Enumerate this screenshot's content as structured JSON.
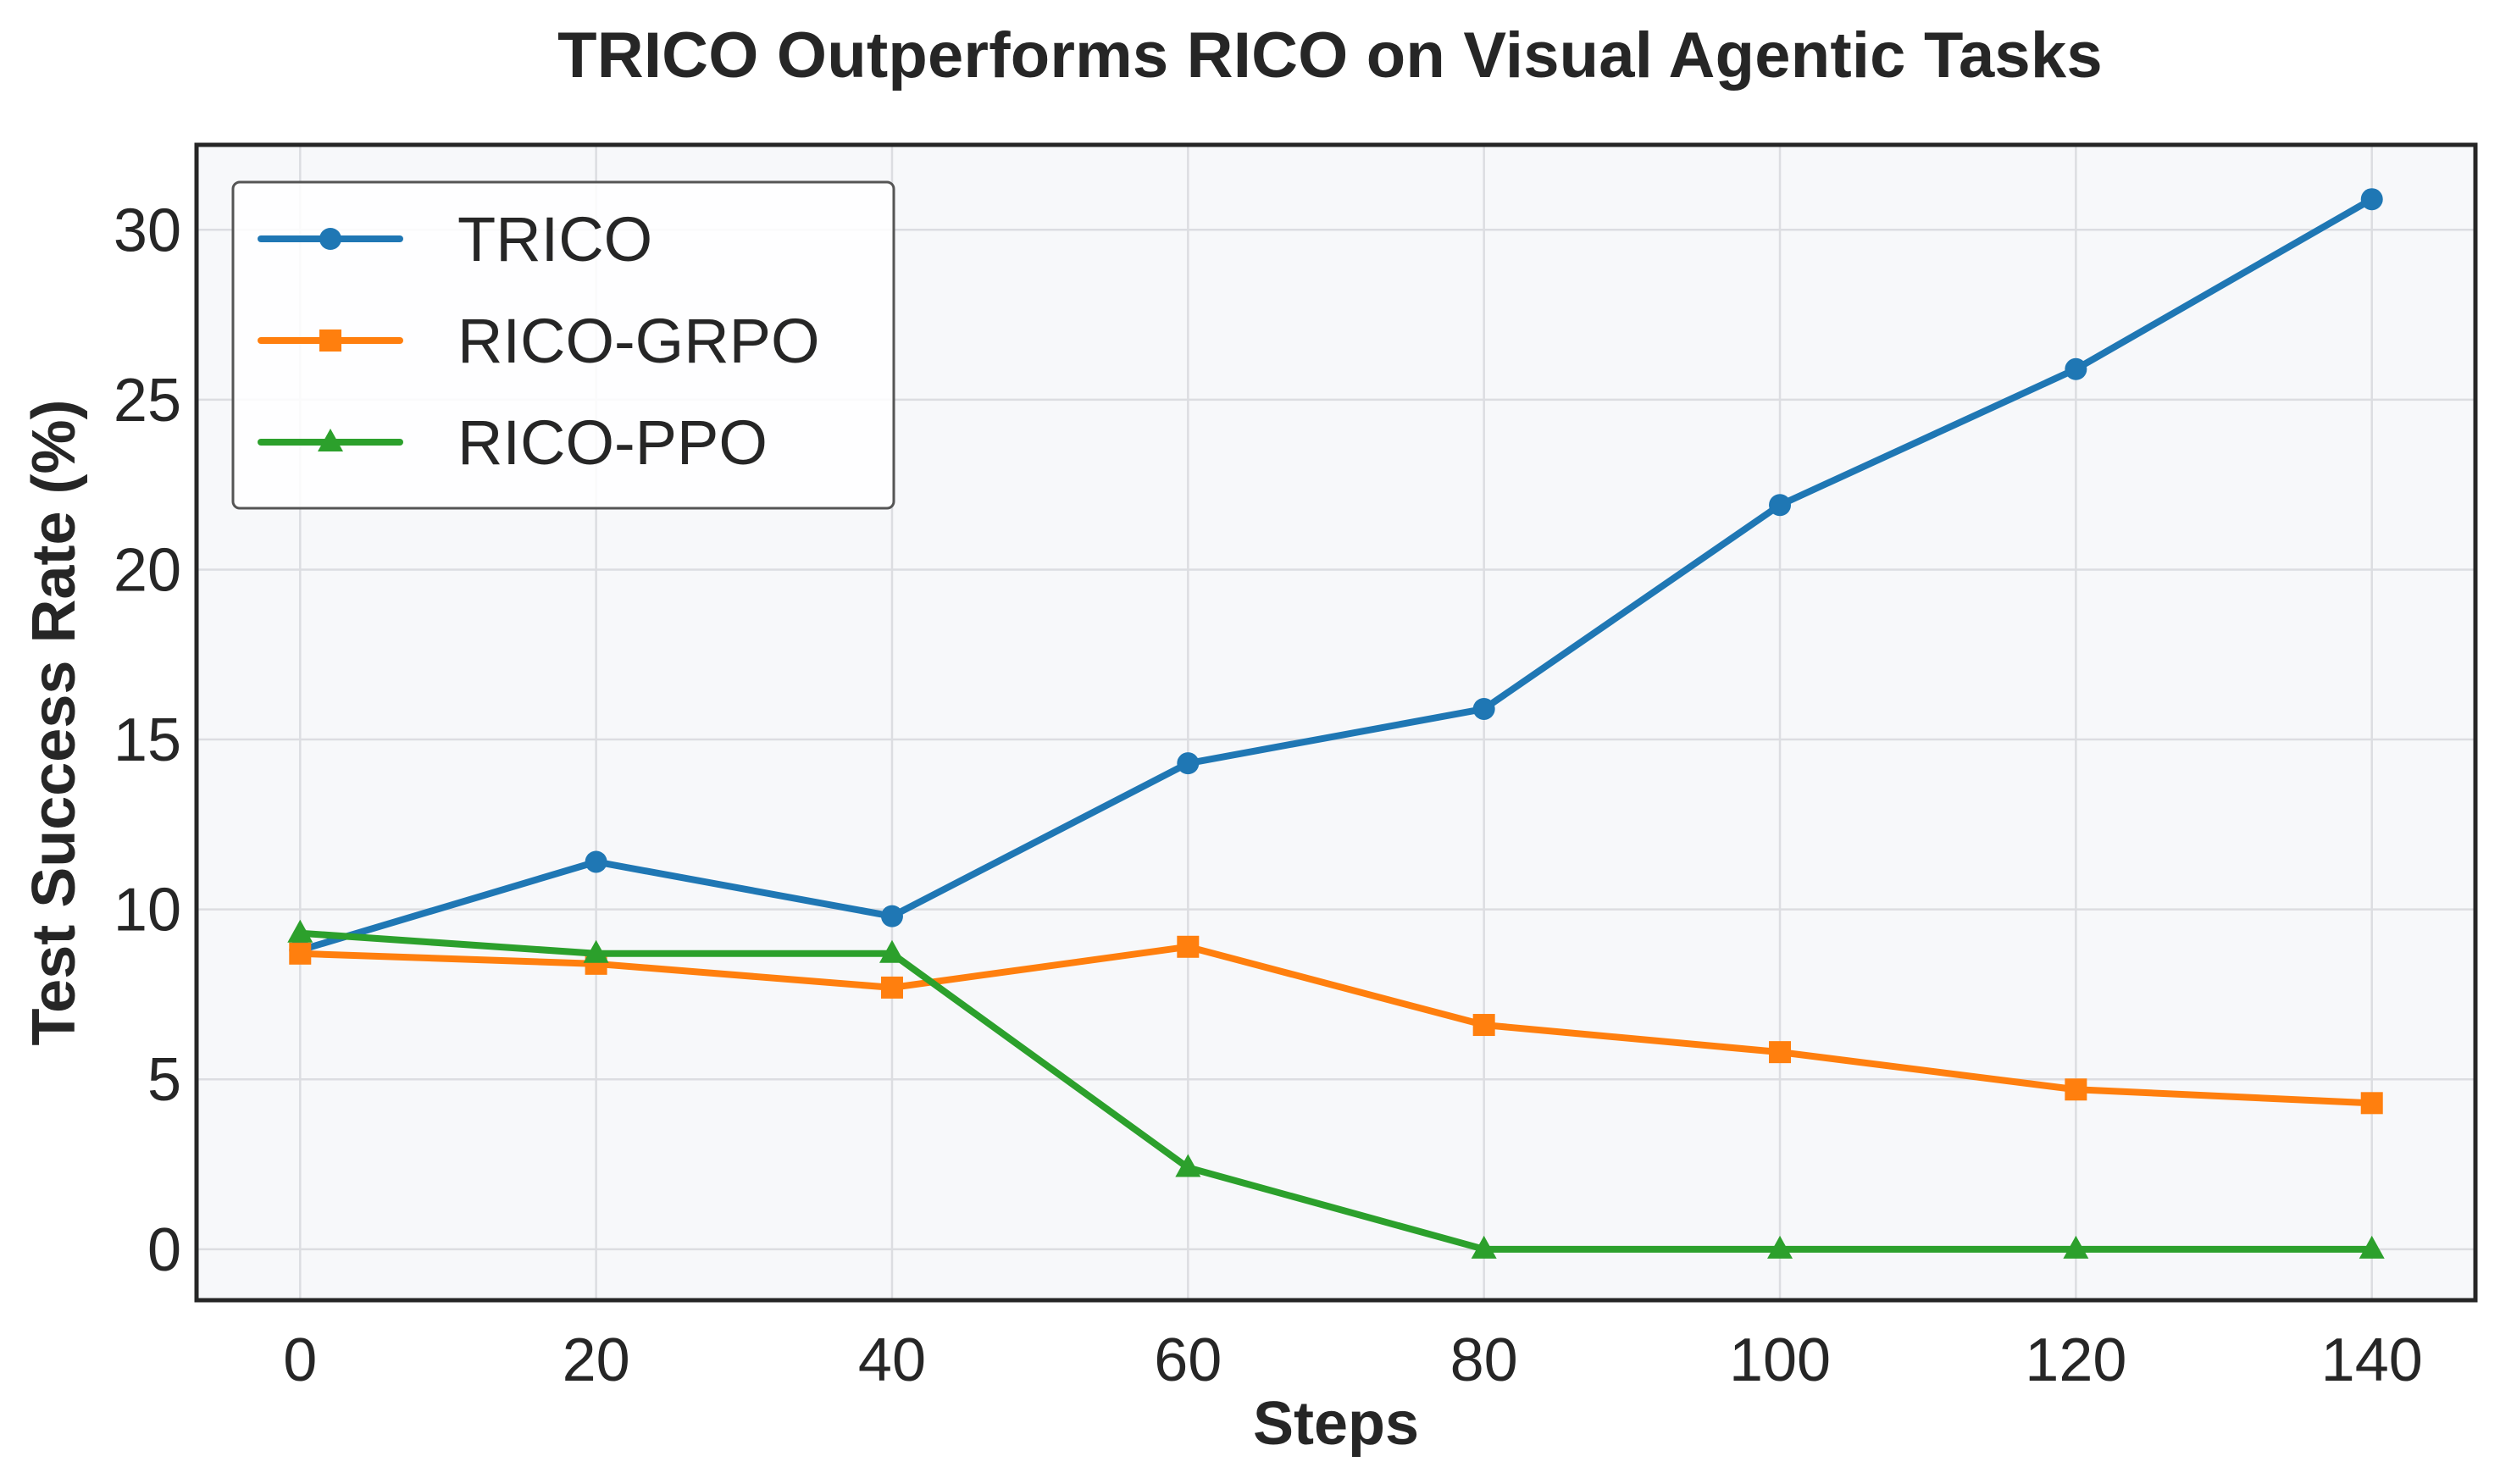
{
  "chart_data": {
    "type": "line",
    "title": "TRICO Outperforms RICO on Visual Agentic Tasks",
    "xlabel": "Steps",
    "ylabel": "Test Success Rate (%)",
    "x": [
      0,
      20,
      40,
      60,
      80,
      100,
      120,
      140
    ],
    "xlim": [
      -7,
      147
    ],
    "ylim": [
      -1.5,
      32.5
    ],
    "xticks": [
      0,
      20,
      40,
      60,
      80,
      100,
      120,
      140
    ],
    "yticks": [
      0,
      5,
      10,
      15,
      20,
      25,
      30
    ],
    "grid": true,
    "legend_position": "top-left",
    "series": [
      {
        "name": "TRICO",
        "color": "#1f77b4",
        "marker": "circle",
        "values": [
          8.8,
          11.4,
          9.8,
          14.3,
          15.9,
          21.9,
          25.9,
          30.9
        ]
      },
      {
        "name": "RICO-GRPO",
        "color": "#ff7f0e",
        "marker": "square",
        "values": [
          8.7,
          8.4,
          7.7,
          8.9,
          6.6,
          5.8,
          4.7,
          4.3
        ]
      },
      {
        "name": "RICO-PPO",
        "color": "#2ca02c",
        "marker": "triangle",
        "values": [
          9.3,
          8.7,
          8.7,
          2.4,
          0.0,
          0.0,
          0.0,
          0.0
        ]
      }
    ]
  }
}
